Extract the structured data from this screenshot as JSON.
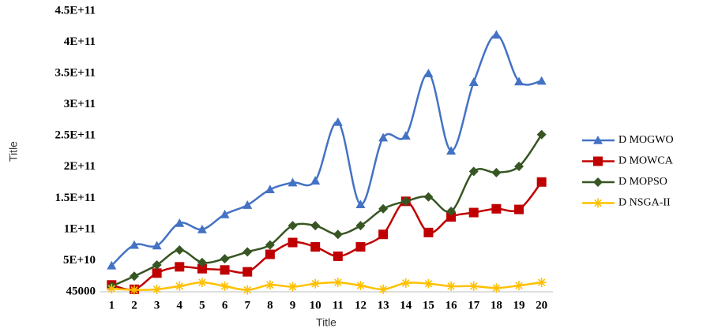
{
  "chart_data": {
    "type": "line",
    "x_label": "Title",
    "y_label": "Title",
    "categories": [
      "1",
      "2",
      "3",
      "4",
      "5",
      "6",
      "7",
      "8",
      "9",
      "10",
      "11",
      "12",
      "13",
      "14",
      "15",
      "16",
      "17",
      "18",
      "19",
      "20"
    ],
    "ylim": [
      45000,
      450000000000
    ],
    "yticks": [
      45000,
      {
        "value": 50000000000,
        "label": "5E+10"
      },
      {
        "value": 100000000000,
        "label": "1E+11"
      },
      {
        "value": 150000000000,
        "label": "1.5E+11"
      },
      {
        "value": 200000000000,
        "label": "2E+11"
      },
      {
        "value": 250000000000,
        "label": "2.5E+11"
      },
      {
        "value": 300000000000,
        "label": "3E+11"
      },
      {
        "value": 350000000000,
        "label": "3.5E+11"
      },
      {
        "value": 400000000000,
        "label": "4E+11"
      },
      {
        "value": 450000000000,
        "label": "4.5E+11"
      }
    ],
    "grid": false,
    "smooth": true,
    "legend": "right",
    "series": [
      {
        "name": "D MOGWO",
        "color": "#4472c4",
        "marker": "triangle",
        "values": [
          42000000000,
          75000000000,
          74000000000,
          110000000000,
          100000000000,
          124000000000,
          139000000000,
          164000000000,
          175000000000,
          178000000000,
          272000000000,
          140000000000,
          247000000000,
          250000000000,
          350000000000,
          226000000000,
          336000000000,
          412000000000,
          337000000000,
          338000000000
        ]
      },
      {
        "name": "D MOWCA",
        "color": "#c00000",
        "marker": "square",
        "values": [
          11000000000,
          4000000000,
          30000000000,
          40000000000,
          37000000000,
          35000000000,
          32000000000,
          60000000000,
          79000000000,
          72000000000,
          57000000000,
          72000000000,
          92000000000,
          145000000000,
          95000000000,
          120000000000,
          127000000000,
          133000000000,
          132000000000,
          176000000000
        ]
      },
      {
        "name": "D MOPSO",
        "color": "#375623",
        "marker": "diamond",
        "values": [
          9000000000,
          25000000000,
          43000000000,
          67000000000,
          47000000000,
          53000000000,
          64000000000,
          75000000000,
          106000000000,
          106000000000,
          92000000000,
          106000000000,
          133000000000,
          145000000000,
          152000000000,
          129000000000,
          193000000000,
          191000000000,
          201000000000,
          252000000000
        ]
      },
      {
        "name": "D NSGA-II",
        "color": "#ffc000",
        "marker": "star",
        "values": [
          5000000000,
          3000000000,
          4000000000,
          9000000000,
          15000000000,
          9000000000,
          3000000000,
          11000000000,
          8000000000,
          13000000000,
          15000000000,
          10000000000,
          4000000000,
          14000000000,
          13000000000,
          9000000000,
          9000000000,
          6000000000,
          10000000000,
          15000000000
        ]
      }
    ]
  }
}
